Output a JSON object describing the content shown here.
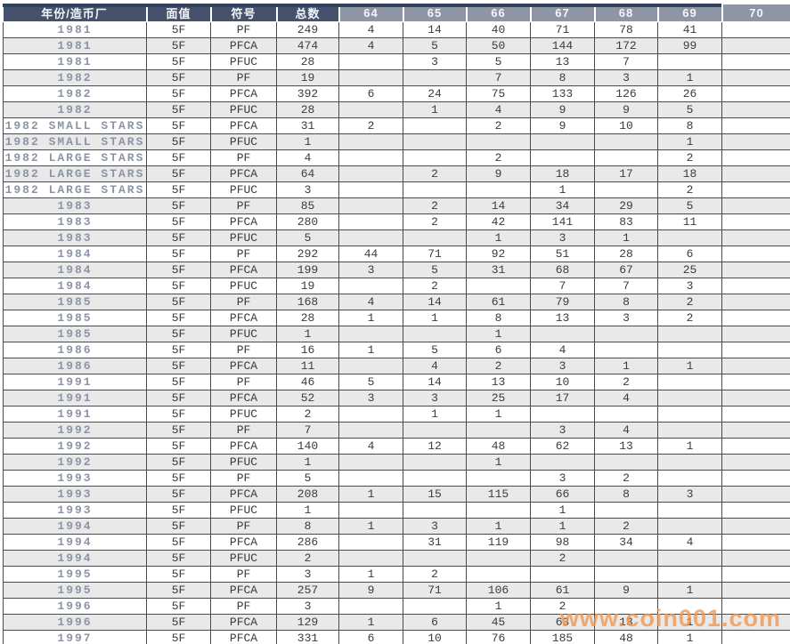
{
  "chart_data": {
    "type": "table",
    "title": "",
    "columns": [
      {
        "key": "year-mint",
        "label": "年份/造币厂",
        "group": "dark"
      },
      {
        "key": "denomination",
        "label": "面值",
        "group": "dark"
      },
      {
        "key": "designation",
        "label": "符号",
        "group": "dark"
      },
      {
        "key": "total",
        "label": "总数",
        "group": "dark"
      },
      {
        "key": "grade-64",
        "label": "64",
        "group": "light"
      },
      {
        "key": "grade-65",
        "label": "65",
        "group": "light"
      },
      {
        "key": "grade-66",
        "label": "66",
        "group": "light"
      },
      {
        "key": "grade-67",
        "label": "67",
        "group": "light"
      },
      {
        "key": "grade-68",
        "label": "68",
        "group": "light"
      },
      {
        "key": "grade-69",
        "label": "69",
        "group": "light"
      },
      {
        "key": "grade-70",
        "label": "70",
        "group": "light"
      }
    ],
    "rows": [
      [
        "1981",
        "5F",
        "PF",
        "249",
        "4",
        "14",
        "40",
        "71",
        "78",
        "41",
        ""
      ],
      [
        "1981",
        "5F",
        "PFCA",
        "474",
        "4",
        "5",
        "50",
        "144",
        "172",
        "99",
        ""
      ],
      [
        "1981",
        "5F",
        "PFUC",
        "28",
        "",
        "3",
        "5",
        "13",
        "7",
        "",
        ""
      ],
      [
        "1982",
        "5F",
        "PF",
        "19",
        "",
        "",
        "7",
        "8",
        "3",
        "1",
        ""
      ],
      [
        "1982",
        "5F",
        "PFCA",
        "392",
        "6",
        "24",
        "75",
        "133",
        "126",
        "26",
        ""
      ],
      [
        "1982",
        "5F",
        "PFUC",
        "28",
        "",
        "1",
        "4",
        "9",
        "9",
        "5",
        ""
      ],
      [
        "1982 SMALL STARS",
        "5F",
        "PFCA",
        "31",
        "2",
        "",
        "2",
        "9",
        "10",
        "8",
        ""
      ],
      [
        "1982 SMALL STARS",
        "5F",
        "PFUC",
        "1",
        "",
        "",
        "",
        "",
        "",
        "1",
        ""
      ],
      [
        "1982 LARGE STARS",
        "5F",
        "PF",
        "4",
        "",
        "",
        "2",
        "",
        "",
        "2",
        ""
      ],
      [
        "1982 LARGE STARS",
        "5F",
        "PFCA",
        "64",
        "",
        "2",
        "9",
        "18",
        "17",
        "18",
        ""
      ],
      [
        "1982 LARGE STARS",
        "5F",
        "PFUC",
        "3",
        "",
        "",
        "",
        "1",
        "",
        "2",
        ""
      ],
      [
        "1983",
        "5F",
        "PF",
        "85",
        "",
        "2",
        "14",
        "34",
        "29",
        "5",
        ""
      ],
      [
        "1983",
        "5F",
        "PFCA",
        "280",
        "",
        "2",
        "42",
        "141",
        "83",
        "11",
        ""
      ],
      [
        "1983",
        "5F",
        "PFUC",
        "5",
        "",
        "",
        "1",
        "3",
        "1",
        "",
        ""
      ],
      [
        "1984",
        "5F",
        "PF",
        "292",
        "44",
        "71",
        "92",
        "51",
        "28",
        "6",
        ""
      ],
      [
        "1984",
        "5F",
        "PFCA",
        "199",
        "3",
        "5",
        "31",
        "68",
        "67",
        "25",
        ""
      ],
      [
        "1984",
        "5F",
        "PFUC",
        "19",
        "",
        "2",
        "",
        "7",
        "7",
        "3",
        ""
      ],
      [
        "1985",
        "5F",
        "PF",
        "168",
        "4",
        "14",
        "61",
        "79",
        "8",
        "2",
        ""
      ],
      [
        "1985",
        "5F",
        "PFCA",
        "28",
        "1",
        "1",
        "8",
        "13",
        "3",
        "2",
        ""
      ],
      [
        "1985",
        "5F",
        "PFUC",
        "1",
        "",
        "",
        "1",
        "",
        "",
        "",
        ""
      ],
      [
        "1986",
        "5F",
        "PF",
        "16",
        "1",
        "5",
        "6",
        "4",
        "",
        "",
        ""
      ],
      [
        "1986",
        "5F",
        "PFCA",
        "11",
        "",
        "4",
        "2",
        "3",
        "1",
        "1",
        ""
      ],
      [
        "1991",
        "5F",
        "PF",
        "46",
        "5",
        "14",
        "13",
        "10",
        "2",
        "",
        ""
      ],
      [
        "1991",
        "5F",
        "PFCA",
        "52",
        "3",
        "3",
        "25",
        "17",
        "4",
        "",
        ""
      ],
      [
        "1991",
        "5F",
        "PFUC",
        "2",
        "",
        "1",
        "1",
        "",
        "",
        "",
        ""
      ],
      [
        "1992",
        "5F",
        "PF",
        "7",
        "",
        "",
        "",
        "3",
        "4",
        "",
        ""
      ],
      [
        "1992",
        "5F",
        "PFCA",
        "140",
        "4",
        "12",
        "48",
        "62",
        "13",
        "1",
        ""
      ],
      [
        "1992",
        "5F",
        "PFUC",
        "1",
        "",
        "",
        "1",
        "",
        "",
        "",
        ""
      ],
      [
        "1993",
        "5F",
        "PF",
        "5",
        "",
        "",
        "",
        "3",
        "2",
        "",
        ""
      ],
      [
        "1993",
        "5F",
        "PFCA",
        "208",
        "1",
        "15",
        "115",
        "66",
        "8",
        "3",
        ""
      ],
      [
        "1993",
        "5F",
        "PFUC",
        "1",
        "",
        "",
        "",
        "1",
        "",
        "",
        ""
      ],
      [
        "1994",
        "5F",
        "PF",
        "8",
        "1",
        "3",
        "1",
        "1",
        "2",
        "",
        ""
      ],
      [
        "1994",
        "5F",
        "PFCA",
        "286",
        "",
        "31",
        "119",
        "98",
        "34",
        "4",
        ""
      ],
      [
        "1994",
        "5F",
        "PFUC",
        "2",
        "",
        "",
        "",
        "2",
        "",
        "",
        ""
      ],
      [
        "1995",
        "5F",
        "PF",
        "3",
        "1",
        "2",
        "",
        "",
        "",
        "",
        ""
      ],
      [
        "1995",
        "5F",
        "PFCA",
        "257",
        "9",
        "71",
        "106",
        "61",
        "9",
        "1",
        ""
      ],
      [
        "1996",
        "5F",
        "PF",
        "3",
        "",
        "",
        "1",
        "2",
        "",
        "",
        ""
      ],
      [
        "1996",
        "5F",
        "PFCA",
        "129",
        "1",
        "6",
        "45",
        "63",
        "13",
        "1",
        ""
      ],
      [
        "1997",
        "5F",
        "PFCA",
        "331",
        "6",
        "10",
        "76",
        "185",
        "48",
        "1",
        ""
      ]
    ]
  },
  "watermark": {
    "text": "www.coin001.com"
  },
  "colors": {
    "header_dark": "#46526c",
    "header_light": "#8e96a6",
    "top_strip": "#33415c",
    "row_alt": "#e9e9e9",
    "year_text": "#8b95a5",
    "watermark_orange": "#f0964e"
  }
}
